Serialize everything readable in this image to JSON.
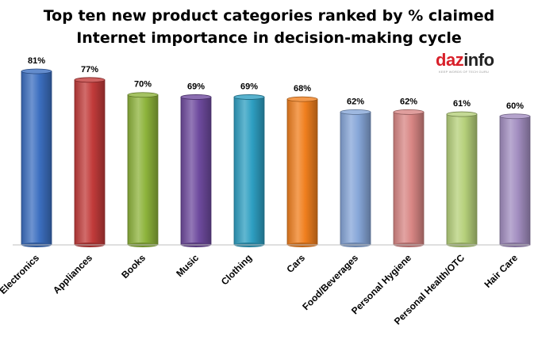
{
  "brand": {
    "logo_part1": "daz",
    "logo_part2": "info",
    "tagline": "KEEP WORDS OF TECH GURU"
  },
  "chart_data": {
    "type": "bar",
    "title_lines": [
      "Top ten new product categories ranked by % claimed",
      "Internet importance in decision-making cycle"
    ],
    "categories": [
      "Electronics",
      "Appliances",
      "Books",
      "Music",
      "Clothing",
      "Cars",
      "Food/Beverages",
      "Personal Hygiene",
      "Personal Health/OTC",
      "Hair Care"
    ],
    "values": [
      81,
      77,
      70,
      69,
      69,
      68,
      62,
      62,
      61,
      60
    ],
    "data_labels": [
      "81%",
      "77%",
      "70%",
      "69%",
      "69%",
      "68%",
      "62%",
      "62%",
      "61%",
      "60%"
    ],
    "colors": [
      "#3c6fc0",
      "#c23b3a",
      "#8db33b",
      "#6e4a9e",
      "#2e9fc2",
      "#f07f1e",
      "#86a6d8",
      "#d88684",
      "#b5d07a",
      "#a28dc0"
    ],
    "ylim": [
      0,
      100
    ],
    "grid": false,
    "legend": "none"
  }
}
